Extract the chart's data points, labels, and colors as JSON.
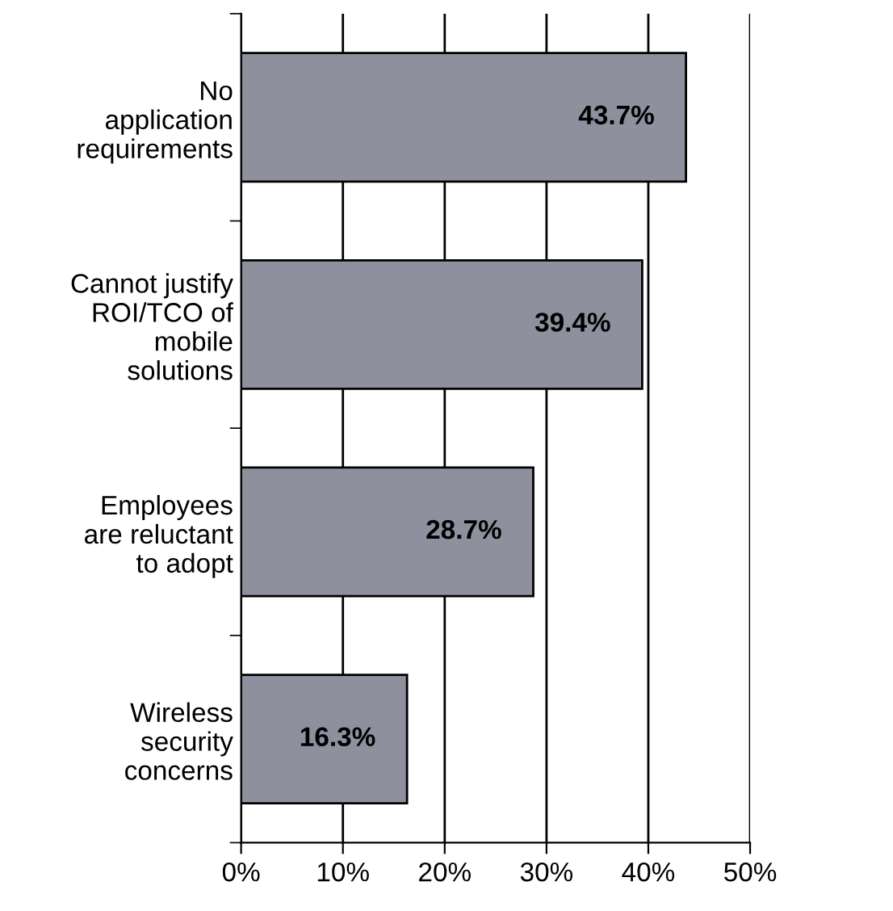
{
  "chart_data": {
    "type": "bar",
    "orientation": "horizontal",
    "categories": [
      "No\napplication\nrequirements",
      "Cannot justify\nROI/TCO of\nmobile\nsolutions",
      "Employees\nare reluctant\nto adopt",
      "Wireless\nsecurity\nconcerns"
    ],
    "values": [
      43.7,
      39.4,
      28.7,
      16.3
    ],
    "value_labels": [
      "43.7%",
      "39.4%",
      "28.7%",
      "16.3%"
    ],
    "color": "#8e909e",
    "xlim": [
      0,
      50
    ],
    "xticks": [
      {
        "value": 0,
        "label": "0%"
      },
      {
        "value": 10,
        "label": "10%"
      },
      {
        "value": 20,
        "label": "20%"
      },
      {
        "value": 30,
        "label": "30%"
      },
      {
        "value": 40,
        "label": "40%"
      },
      {
        "value": 50,
        "label": "50%"
      }
    ],
    "grid": "x",
    "legend": false
  }
}
